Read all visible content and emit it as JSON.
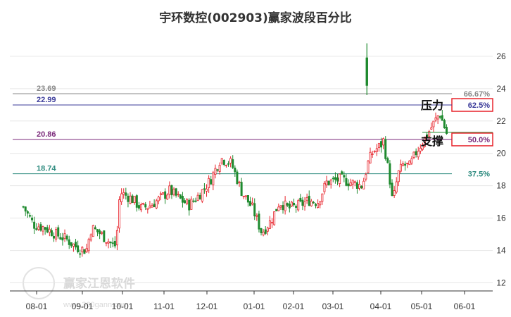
{
  "chart_data": {
    "type": "candlestick",
    "title": "宇环数控(002903)赢家波段百分比",
    "x_ticks": [
      "08-01",
      "09-01",
      "10-01",
      "11-01",
      "12-01",
      "01-01",
      "02-01",
      "03-01",
      "04-01",
      "05-01",
      "06-01"
    ],
    "y_ticks": [
      12,
      14,
      16,
      18,
      20,
      22,
      24,
      26
    ],
    "ylim": [
      11.5,
      27.3
    ],
    "levels": [
      {
        "price": "23.69",
        "pct": "66.67%",
        "value": 23.69,
        "color": "#888888",
        "highlight": false
      },
      {
        "price": "22.99",
        "pct": "62.5%",
        "value": 22.99,
        "color": "#3b3b9a",
        "highlight": true
      },
      {
        "price": "20.86",
        "pct": "50.0%",
        "value": 20.86,
        "color": "#7b2a7b",
        "highlight": true
      },
      {
        "price": "18.74",
        "pct": "37.5%",
        "value": 18.74,
        "color": "#2e8b7f",
        "highlight": false
      }
    ],
    "annotations": {
      "resistance": "压力",
      "support": "支撑"
    },
    "up_color": "#e8242c",
    "down_color": "#1e8a2e",
    "series_anchors": [
      [
        "07-23",
        16.7
      ],
      [
        "07-30",
        15.6
      ],
      [
        "08-07",
        15.4
      ],
      [
        "08-14",
        15.0
      ],
      [
        "08-21",
        14.7
      ],
      [
        "08-28",
        14.2
      ],
      [
        "09-04",
        14.0
      ],
      [
        "09-08",
        15.4
      ],
      [
        "09-14",
        15.1
      ],
      [
        "09-21",
        14.6
      ],
      [
        "09-26",
        14.2
      ],
      [
        "09-28",
        15.3
      ],
      [
        "09-30",
        17.6
      ],
      [
        "10-08",
        17.2
      ],
      [
        "10-15",
        16.6
      ],
      [
        "10-22",
        16.8
      ],
      [
        "10-29",
        17.2
      ],
      [
        "11-05",
        17.7
      ],
      [
        "11-12",
        17.2
      ],
      [
        "11-19",
        16.8
      ],
      [
        "11-26",
        17.4
      ],
      [
        "12-03",
        18.3
      ],
      [
        "12-10",
        19.7
      ],
      [
        "12-17",
        19.4
      ],
      [
        "12-24",
        17.6
      ],
      [
        "12-31",
        16.6
      ],
      [
        "01-07",
        15.1
      ],
      [
        "01-14",
        15.8
      ],
      [
        "01-21",
        17.0
      ],
      [
        "01-28",
        16.6
      ],
      [
        "02-06",
        16.8
      ],
      [
        "02-13",
        17.1
      ],
      [
        "02-20",
        17.0
      ],
      [
        "02-27",
        18.2
      ],
      [
        "03-06",
        18.4
      ],
      [
        "03-13",
        18.2
      ],
      [
        "03-20",
        18.0
      ],
      [
        "03-24",
        19.5
      ],
      [
        "03-27",
        20.1
      ],
      [
        "04-01",
        20.5
      ],
      [
        "04-03",
        20.8
      ],
      [
        "04-08",
        18.3
      ],
      [
        "04-10",
        16.9
      ],
      [
        "04-14",
        18.7
      ],
      [
        "04-18",
        19.3
      ],
      [
        "04-23",
        19.2
      ],
      [
        "04-28",
        20.1
      ],
      [
        "05-06",
        21.3
      ],
      [
        "05-10",
        21.9
      ],
      [
        "05-14",
        22.5
      ],
      [
        "05-20",
        21.0
      ]
    ]
  },
  "watermark": {
    "text": "赢家江恩软件",
    "url": "www.360gann.com"
  }
}
